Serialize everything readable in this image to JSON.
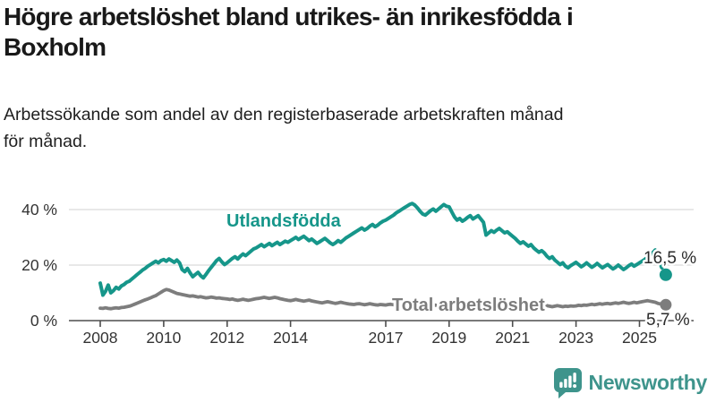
{
  "header": {
    "title": "Högre arbetslöshet bland utrikes- än inrikesfödda i\nBoxholm",
    "subtitle": "Arbetssökande som andel av den registerbaserade arbetskraften månad\nför månad."
  },
  "footer": {
    "brand_name": "Newsworthy",
    "brand_color": "#3e948c",
    "logo_icon": "bar-chart-speech-bubble-icon"
  },
  "chart_data": {
    "type": "line",
    "title": "Högre arbetslöshet bland utrikes- än inrikesfödda i Boxholm",
    "subtitle": "Arbetssökande som andel av den registerbaserade arbetskraften månad för månad.",
    "legend": "inline-labels",
    "grid": true,
    "gridline_color": "#d9d9d9",
    "axis_color": "#4d4d4d",
    "value_label_color": "#2b2b2b",
    "x": {
      "unit": "month",
      "start": "2008-01",
      "end": "2025-11",
      "tick_years": [
        2008,
        2010,
        2012,
        2014,
        2017,
        2019,
        2021,
        2023,
        2025
      ],
      "tick_labels": [
        "2008",
        "2010",
        "2012",
        "2014",
        "2017",
        "2019",
        "2021",
        "2023",
        "2025"
      ]
    },
    "y": {
      "lim": [
        0,
        45
      ],
      "ticks": [
        0,
        20,
        40
      ],
      "tick_labels": [
        "0 %",
        "20 %",
        "40 %"
      ],
      "grid_values": [
        20,
        40
      ]
    },
    "series": [
      {
        "name": "Utlandsfödda",
        "color": "#16968a",
        "end_value": 16.5,
        "end_label": "16,5 %",
        "dashed_tail_start_index": 210,
        "values": [
          13.5,
          9.2,
          10.5,
          12.8,
          10.0,
          10.8,
          12.0,
          11.4,
          12.5,
          13.0,
          13.8,
          14.2,
          15.0,
          15.8,
          16.6,
          17.4,
          18.2,
          18.8,
          19.6,
          20.2,
          20.8,
          21.4,
          20.8,
          21.6,
          22.0,
          21.4,
          22.2,
          21.6,
          21.0,
          21.8,
          20.8,
          18.4,
          17.6,
          18.8,
          17.2,
          15.8,
          16.6,
          17.4,
          16.2,
          15.4,
          16.6,
          18.0,
          19.2,
          20.4,
          21.6,
          22.4,
          21.2,
          20.2,
          20.8,
          21.6,
          22.4,
          23.0,
          22.2,
          23.2,
          24.0,
          23.4,
          24.2,
          25.0,
          25.8,
          26.2,
          26.8,
          27.4,
          26.6,
          27.2,
          27.8,
          27.0,
          27.6,
          28.2,
          27.4,
          28.0,
          28.6,
          28.2,
          28.8,
          29.4,
          30.0,
          29.2,
          29.8,
          30.4,
          29.6,
          28.8,
          29.4,
          28.6,
          27.8,
          28.4,
          29.0,
          29.6,
          28.8,
          28.0,
          27.4,
          28.0,
          28.8,
          28.2,
          29.0,
          29.8,
          30.4,
          31.0,
          31.6,
          32.2,
          32.8,
          33.4,
          32.6,
          33.2,
          34.0,
          34.6,
          33.8,
          34.4,
          35.2,
          35.8,
          36.2,
          36.8,
          37.4,
          38.0,
          38.8,
          39.4,
          40.0,
          40.6,
          41.2,
          41.8,
          42.2,
          41.6,
          40.6,
          39.4,
          38.4,
          38.0,
          38.8,
          39.6,
          40.2,
          39.4,
          40.2,
          41.0,
          41.8,
          41.2,
          41.0,
          39.2,
          37.4,
          36.2,
          36.8,
          35.8,
          36.4,
          37.2,
          37.8,
          36.6,
          37.2,
          37.8,
          36.6,
          35.4,
          30.8,
          31.6,
          32.4,
          31.8,
          32.6,
          33.2,
          32.4,
          31.6,
          32.0,
          31.2,
          30.4,
          29.6,
          28.6,
          27.8,
          28.4,
          27.6,
          26.8,
          27.4,
          26.2,
          25.4,
          24.6,
          25.2,
          24.4,
          23.2,
          22.4,
          23.0,
          21.8,
          21.0,
          20.2,
          20.8,
          19.6,
          19.0,
          19.8,
          20.4,
          21.0,
          20.2,
          19.4,
          20.0,
          20.8,
          20.0,
          19.2,
          19.8,
          20.6,
          19.8,
          19.0,
          19.6,
          20.2,
          19.4,
          18.6,
          19.2,
          20.0,
          19.2,
          18.4,
          19.0,
          19.8,
          20.4,
          19.6,
          20.2,
          20.8,
          21.4,
          22.0,
          22.8,
          23.6,
          24.4,
          25.4,
          23.0,
          20.2,
          17.8,
          16.5
        ]
      },
      {
        "name": "Total arbetslöshet",
        "color": "#7d7d7d",
        "end_value": 5.7,
        "end_label": "5,7 %",
        "dashed_tail_start_index": null,
        "values": [
          4.5,
          4.4,
          4.6,
          4.4,
          4.3,
          4.5,
          4.6,
          4.5,
          4.7,
          4.8,
          5.0,
          5.2,
          5.5,
          5.9,
          6.3,
          6.7,
          7.1,
          7.5,
          7.8,
          8.2,
          8.6,
          9.0,
          9.6,
          10.2,
          10.8,
          11.2,
          11.0,
          10.6,
          10.2,
          9.8,
          9.6,
          9.4,
          9.2,
          9.0,
          8.8,
          8.9,
          8.7,
          8.5,
          8.6,
          8.4,
          8.2,
          8.3,
          8.5,
          8.3,
          8.1,
          8.2,
          8.0,
          7.9,
          7.8,
          7.6,
          7.8,
          7.5,
          7.3,
          7.5,
          7.7,
          7.5,
          7.3,
          7.5,
          7.7,
          7.9,
          8.0,
          8.2,
          8.4,
          8.2,
          8.0,
          8.2,
          8.4,
          8.2,
          7.9,
          7.7,
          7.5,
          7.3,
          7.2,
          7.4,
          7.6,
          7.4,
          7.2,
          7.0,
          7.2,
          7.4,
          7.1,
          6.9,
          6.7,
          6.5,
          6.4,
          6.6,
          6.8,
          6.6,
          6.4,
          6.2,
          6.4,
          6.6,
          6.4,
          6.2,
          6.0,
          5.9,
          5.8,
          6.0,
          6.1,
          5.9,
          5.7,
          5.9,
          6.1,
          5.9,
          5.7,
          5.6,
          5.8,
          5.7,
          5.6,
          5.8,
          5.9,
          5.7,
          5.5,
          5.7,
          5.9,
          5.7,
          5.5,
          5.4,
          5.6,
          5.5,
          5.4,
          5.6,
          5.7,
          5.5,
          5.3,
          5.5,
          5.7,
          5.5,
          5.3,
          5.2,
          5.4,
          5.3,
          5.4,
          5.6,
          5.5,
          5.3,
          5.5,
          5.7,
          5.5,
          5.3,
          5.5,
          5.4,
          5.6,
          5.5,
          5.7,
          5.9,
          6.1,
          6.3,
          6.1,
          5.9,
          6.1,
          6.0,
          5.8,
          5.6,
          5.8,
          5.7,
          5.6,
          5.8,
          5.6,
          5.4,
          5.6,
          5.5,
          5.3,
          5.5,
          5.4,
          5.2,
          5.4,
          5.3,
          5.2,
          5.4,
          5.2,
          5.0,
          5.2,
          5.4,
          5.2,
          5.0,
          5.2,
          5.1,
          5.3,
          5.2,
          5.3,
          5.5,
          5.4,
          5.6,
          5.5,
          5.7,
          5.9,
          5.7,
          5.9,
          6.1,
          5.9,
          6.1,
          6.2,
          6.0,
          6.2,
          6.4,
          6.2,
          6.4,
          6.6,
          6.4,
          6.2,
          6.4,
          6.6,
          6.4,
          6.6,
          6.8,
          7.0,
          7.2,
          7.0,
          6.8,
          6.6,
          6.2,
          6.0,
          5.8,
          5.7
        ]
      }
    ]
  }
}
